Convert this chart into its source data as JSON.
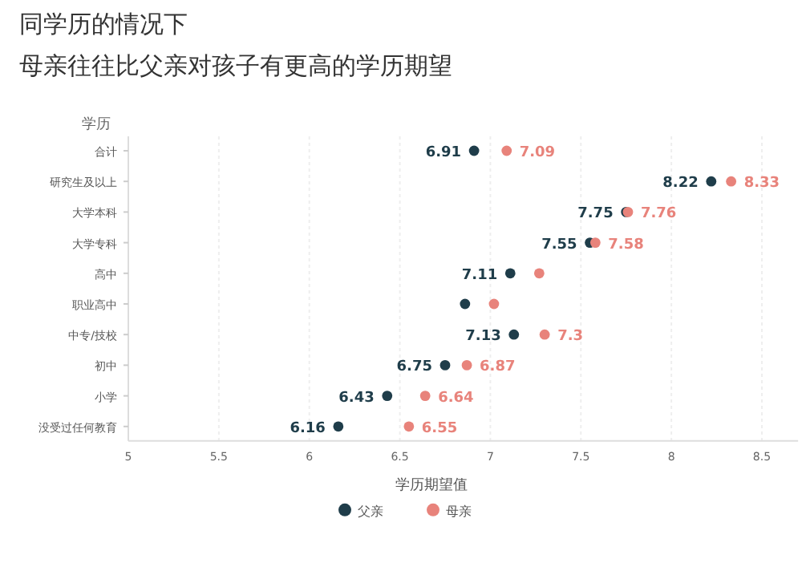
{
  "chart_data": {
    "type": "scatter",
    "orientation": "horizontal",
    "title": "同学历的情况下",
    "subtitle": "母亲往往比父亲对孩子有更高的学历期望",
    "ylabel": "学历",
    "xlabel": "学历期望值",
    "categories": [
      "合计",
      "研究生及以上",
      "大学本科",
      "大学专科",
      "高中",
      "职业高中",
      "中专/技校",
      "初中",
      "小学",
      "没受过任何教育"
    ],
    "series": [
      {
        "name": "父亲",
        "color": "#1f3d4a",
        "values": [
          6.91,
          8.22,
          7.75,
          7.55,
          7.11,
          6.86,
          7.13,
          6.75,
          6.43,
          6.16
        ],
        "value_labels": [
          "6.91",
          "8.22",
          "7.75",
          "7.55",
          "7.11",
          null,
          "7.13",
          "6.75",
          "6.43",
          "6.16"
        ]
      },
      {
        "name": "母亲",
        "color": "#e8837b",
        "values": [
          7.09,
          8.33,
          7.76,
          7.58,
          7.27,
          7.02,
          7.3,
          6.87,
          6.64,
          6.55
        ],
        "value_labels": [
          "7.09",
          "8.33",
          "7.76",
          "7.58",
          null,
          null,
          "7.3",
          "6.87",
          "6.64",
          "6.55"
        ]
      }
    ],
    "xlim": [
      5,
      8.7
    ],
    "xticks": [
      5,
      5.5,
      6,
      6.5,
      7,
      7.5,
      8,
      8.5
    ],
    "grid": "x",
    "marker": "circle",
    "legend": "bottom"
  }
}
